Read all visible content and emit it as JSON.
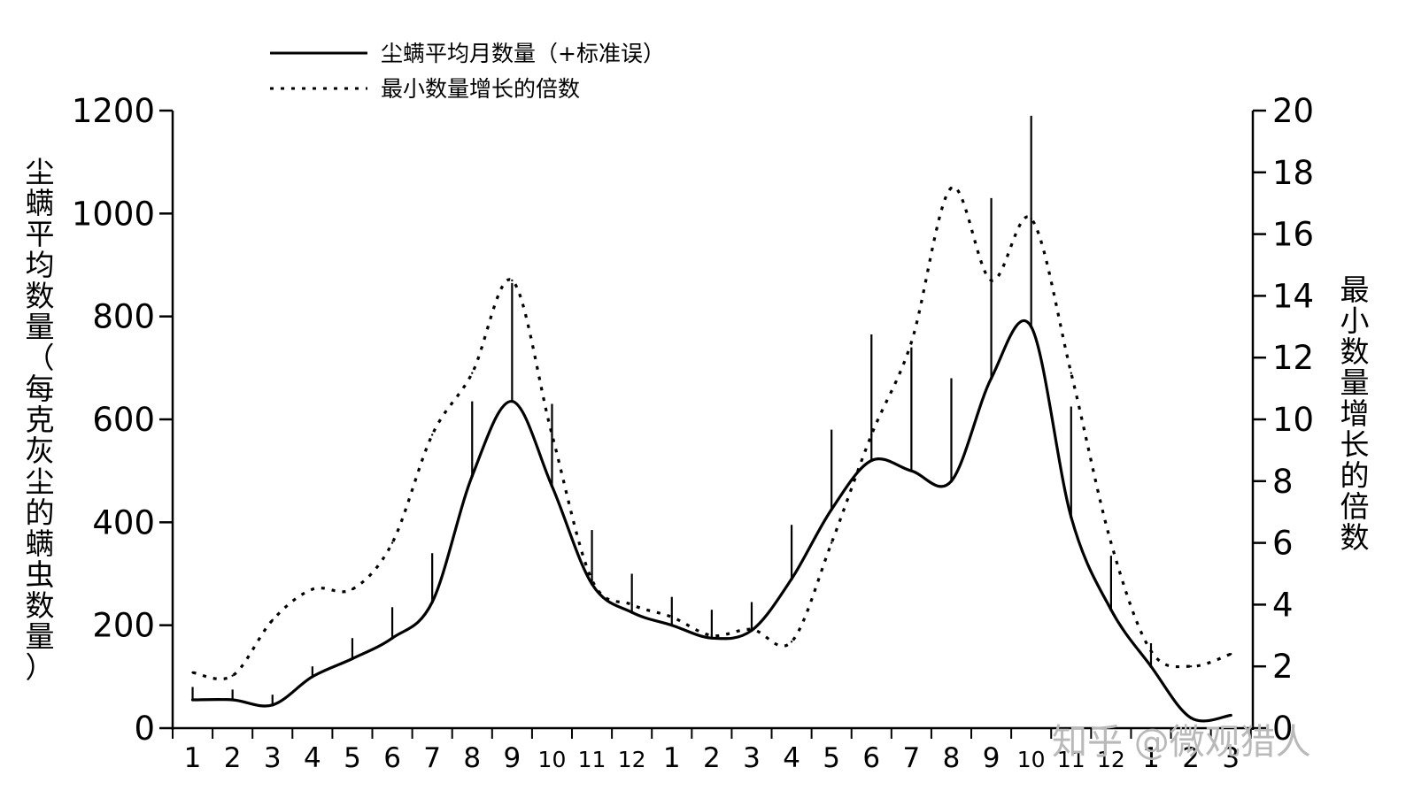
{
  "chart_data": {
    "type": "line",
    "categories": [
      "1",
      "2",
      "3",
      "4",
      "5",
      "6",
      "7",
      "8",
      "9",
      "10",
      "11",
      "12",
      "1",
      "2",
      "3",
      "4",
      "5",
      "6",
      "7",
      "8",
      "9",
      "10",
      "11",
      "12",
      "1",
      "2",
      "3"
    ],
    "left_ylabel": "尘螨平均数量（每克灰尘的螨虫数量）",
    "right_ylabel": "最小数量增长的倍数",
    "left_ylim": [
      0,
      1200
    ],
    "left_yticks": [
      0,
      200,
      400,
      600,
      800,
      1000,
      1200
    ],
    "right_ylim": [
      0,
      20
    ],
    "right_yticks": [
      0,
      2,
      4,
      6,
      8,
      10,
      12,
      14,
      16,
      18,
      20
    ],
    "grid": false,
    "legend_position": "top-left",
    "series": [
      {
        "name": "尘螨平均月数量（+标准误）",
        "axis": "left",
        "style": "solid",
        "values": [
          55,
          55,
          45,
          100,
          135,
          175,
          245,
          490,
          635,
          470,
          280,
          225,
          200,
          175,
          190,
          290,
          425,
          520,
          500,
          480,
          680,
          780,
          410,
          230,
          120,
          20,
          25
        ],
        "error_tops": [
          80,
          75,
          65,
          120,
          175,
          235,
          340,
          635,
          865,
          630,
          385,
          300,
          255,
          230,
          245,
          395,
          580,
          765,
          740,
          680,
          1030,
          1190,
          625,
          335,
          165,
          null,
          null
        ]
      },
      {
        "name": "最小数量增长的倍数",
        "axis": "right",
        "style": "dotted",
        "values": [
          1.8,
          1.7,
          3.5,
          4.5,
          4.5,
          6.0,
          9.5,
          11.5,
          14.5,
          9.5,
          4.8,
          4.0,
          3.6,
          3.0,
          3.2,
          2.8,
          6.0,
          9.5,
          12.5,
          17.5,
          14.5,
          16.5,
          11.5,
          6.0,
          2.5,
          2.0,
          2.4
        ]
      }
    ]
  },
  "watermark": "知乎 @微观猎人",
  "colors": {
    "line": "#000000",
    "background": "#ffffff",
    "watermark": "#b9b9b9"
  }
}
